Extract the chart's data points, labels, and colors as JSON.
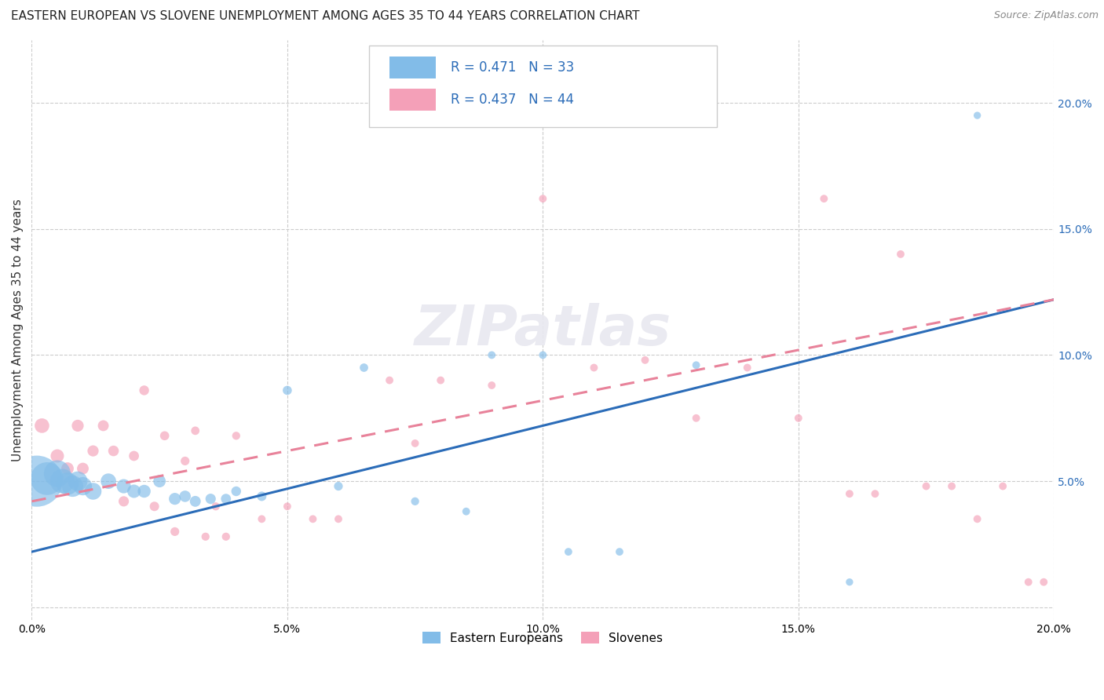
{
  "title": "EASTERN EUROPEAN VS SLOVENE UNEMPLOYMENT AMONG AGES 35 TO 44 YEARS CORRELATION CHART",
  "source": "Source: ZipAtlas.com",
  "ylabel": "Unemployment Among Ages 35 to 44 years",
  "xlim": [
    0.0,
    0.2
  ],
  "ylim": [
    -0.005,
    0.225
  ],
  "xticks": [
    0.0,
    0.05,
    0.1,
    0.15,
    0.2
  ],
  "yticks": [
    0.0,
    0.05,
    0.1,
    0.15,
    0.2
  ],
  "xticklabels": [
    "0.0%",
    "5.0%",
    "10.0%",
    "15.0%",
    "20.0%"
  ],
  "yticklabels_right": [
    "",
    "5.0%",
    "10.0%",
    "15.0%",
    "20.0%"
  ],
  "blue_color": "#82bce8",
  "pink_color": "#f4a0b8",
  "blue_line_color": "#2b6cb8",
  "pink_line_color": "#e8829a",
  "R_blue": 0.471,
  "N_blue": 33,
  "R_pink": 0.437,
  "N_pink": 44,
  "legend_label_blue": "Eastern Europeans",
  "legend_label_pink": "Slovenes",
  "blue_line_start_y": 0.022,
  "blue_line_end_y": 0.122,
  "pink_line_start_y": 0.042,
  "pink_line_end_y": 0.122,
  "blue_x": [
    0.001,
    0.003,
    0.005,
    0.006,
    0.007,
    0.008,
    0.009,
    0.01,
    0.012,
    0.015,
    0.018,
    0.02,
    0.022,
    0.025,
    0.028,
    0.03,
    0.032,
    0.035,
    0.038,
    0.04,
    0.045,
    0.05,
    0.06,
    0.065,
    0.075,
    0.085,
    0.09,
    0.1,
    0.105,
    0.115,
    0.13,
    0.16,
    0.185
  ],
  "blue_y": [
    0.05,
    0.051,
    0.053,
    0.05,
    0.049,
    0.048,
    0.05,
    0.048,
    0.046,
    0.05,
    0.048,
    0.046,
    0.046,
    0.05,
    0.043,
    0.044,
    0.042,
    0.043,
    0.043,
    0.046,
    0.044,
    0.086,
    0.048,
    0.095,
    0.042,
    0.038,
    0.1,
    0.1,
    0.022,
    0.022,
    0.096,
    0.01,
    0.195
  ],
  "blue_sizes": [
    2200,
    900,
    600,
    500,
    420,
    380,
    320,
    280,
    240,
    200,
    170,
    150,
    140,
    130,
    120,
    110,
    100,
    90,
    85,
    80,
    75,
    70,
    65,
    60,
    55,
    50,
    50,
    50,
    50,
    50,
    50,
    45,
    45
  ],
  "pink_x": [
    0.002,
    0.005,
    0.007,
    0.009,
    0.01,
    0.012,
    0.014,
    0.016,
    0.018,
    0.02,
    0.022,
    0.024,
    0.026,
    0.028,
    0.03,
    0.032,
    0.034,
    0.036,
    0.038,
    0.04,
    0.045,
    0.05,
    0.055,
    0.06,
    0.07,
    0.075,
    0.08,
    0.09,
    0.1,
    0.11,
    0.12,
    0.13,
    0.14,
    0.15,
    0.155,
    0.16,
    0.165,
    0.17,
    0.175,
    0.18,
    0.185,
    0.19,
    0.195,
    0.198
  ],
  "pink_y": [
    0.072,
    0.06,
    0.055,
    0.072,
    0.055,
    0.062,
    0.072,
    0.062,
    0.042,
    0.06,
    0.086,
    0.04,
    0.068,
    0.03,
    0.058,
    0.07,
    0.028,
    0.04,
    0.028,
    0.068,
    0.035,
    0.04,
    0.035,
    0.035,
    0.09,
    0.065,
    0.09,
    0.088,
    0.162,
    0.095,
    0.098,
    0.075,
    0.095,
    0.075,
    0.162,
    0.045,
    0.045,
    0.14,
    0.048,
    0.048,
    0.035,
    0.048,
    0.01,
    0.01
  ],
  "pink_sizes": [
    180,
    150,
    130,
    120,
    115,
    105,
    100,
    95,
    90,
    85,
    80,
    75,
    70,
    65,
    65,
    60,
    55,
    55,
    55,
    55,
    50,
    50,
    50,
    50,
    50,
    50,
    50,
    50,
    50,
    50,
    50,
    50,
    50,
    50,
    50,
    50,
    50,
    50,
    50,
    50,
    50,
    50,
    50,
    50
  ],
  "background_color": "#ffffff",
  "grid_color": "#cccccc",
  "title_fontsize": 11,
  "label_fontsize": 11,
  "tick_fontsize": 10
}
